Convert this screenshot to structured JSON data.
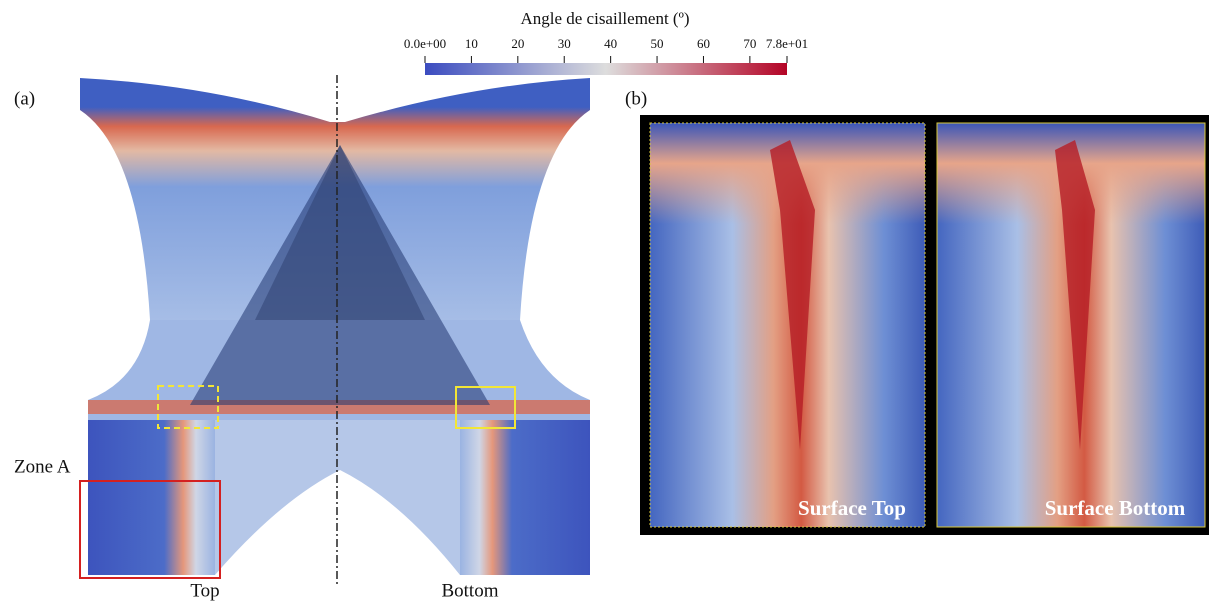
{
  "colorbar": {
    "title": "Angle de cisaillement (º)",
    "range": [
      0,
      78
    ],
    "ticks": [
      {
        "value": 0,
        "label": "0.0e+00"
      },
      10,
      20,
      30,
      40,
      50,
      60,
      70,
      {
        "value": 78,
        "label": "7.8e+01"
      }
    ]
  },
  "panel_a": {
    "label": "(a)",
    "zone_label": "Zone A",
    "left_label": "Top",
    "right_label": "Bottom"
  },
  "panel_b": {
    "label": "(b)",
    "left_caption": "Surface Top",
    "right_caption": "Surface Bottom"
  }
}
